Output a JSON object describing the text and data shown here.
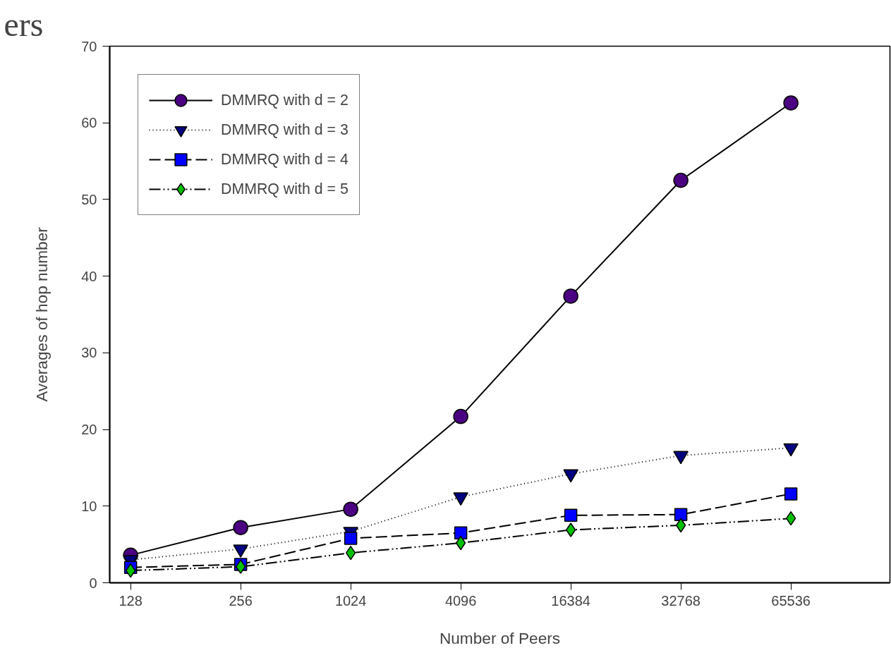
{
  "chart_data": {
    "type": "line",
    "xlabel": "Number of Peers",
    "ylabel": "Averages of hop number",
    "annotations": [
      "ers"
    ],
    "categories": [
      "128",
      "256",
      "1024",
      "4096",
      "16384",
      "32768",
      "65536"
    ],
    "ylim": [
      0,
      70
    ],
    "yticks": [
      0,
      10,
      20,
      30,
      40,
      50,
      60,
      70
    ],
    "grid": false,
    "legend": "top left",
    "series": [
      {
        "name": "DMMRQ with d = 2",
        "color": "#4b0082",
        "marker": "circle",
        "line_style": "solid",
        "values": [
          3.6,
          7.2,
          9.6,
          21.7,
          37.4,
          52.5,
          62.6
        ]
      },
      {
        "name": "DMMRQ with d = 3",
        "color": "#000080",
        "marker": "triangle",
        "line_style": "dotted",
        "values": [
          3.0,
          4.4,
          6.7,
          11.2,
          14.2,
          16.6,
          17.6
        ]
      },
      {
        "name": "DMMRQ with d = 4",
        "color": "#0000ff",
        "marker": "square",
        "line_style": "dashed",
        "values": [
          2.0,
          2.4,
          5.8,
          6.5,
          8.8,
          8.9,
          11.6
        ]
      },
      {
        "name": "DMMRQ with d = 5",
        "color": "#00c000",
        "marker": "diamond",
        "line_style": "dashdot",
        "values": [
          1.6,
          2.1,
          3.9,
          5.2,
          6.9,
          7.5,
          8.4
        ]
      }
    ]
  }
}
